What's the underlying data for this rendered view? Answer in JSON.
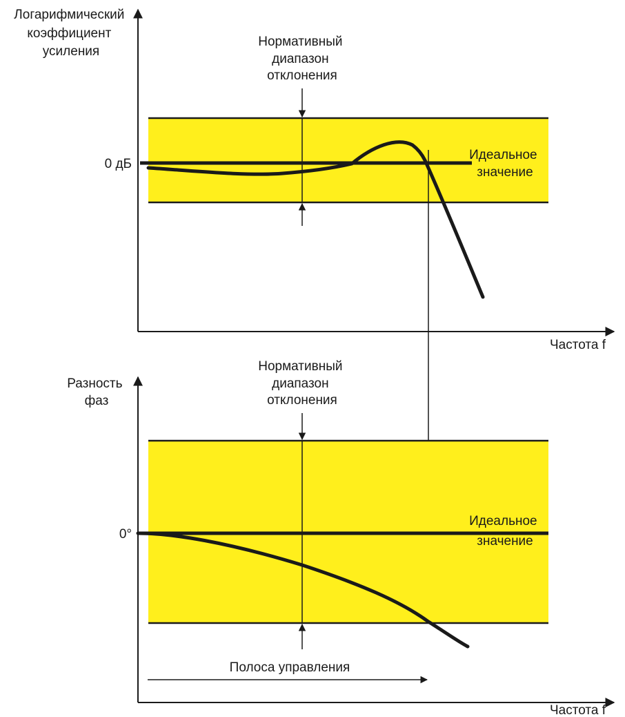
{
  "colors": {
    "band": "#ffef1c",
    "line": "#1a1a1a",
    "background": "#ffffff"
  },
  "gain_plot": {
    "y_axis_label": [
      "Логарифмический",
      "коэффициент",
      "усиления"
    ],
    "zero_label": "0 дБ",
    "tolerance_label": [
      "Нормативный",
      "диапазон",
      "отклонения"
    ],
    "ideal_label": [
      "Идеальное",
      "значение"
    ],
    "x_axis_label": "Частота",
    "x_axis_symbol": "f"
  },
  "phase_plot": {
    "y_axis_label": [
      "Разность",
      "фаз"
    ],
    "zero_label": "0°",
    "tolerance_label": [
      "Нормативный",
      "диапазон",
      "отклонения"
    ],
    "ideal_label": [
      "Идеальное",
      "значение"
    ],
    "bandwidth_label": "Полоса управления",
    "x_axis_label": "Частота",
    "x_axis_symbol": "f"
  }
}
